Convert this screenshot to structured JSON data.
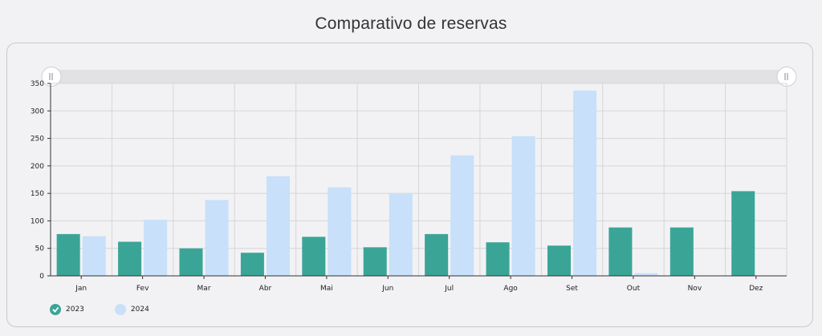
{
  "page": {
    "title": "Comparativo de reservas"
  },
  "colors": {
    "series_2023": "#3aa597",
    "series_2024": "#c8e0f9"
  },
  "chart_data": {
    "type": "bar",
    "title": "Comparativo de reservas",
    "categories": [
      "Jan",
      "Fev",
      "Mar",
      "Abr",
      "Mai",
      "Jun",
      "Jul",
      "Ago",
      "Set",
      "Out",
      "Nov",
      "Dez"
    ],
    "series": [
      {
        "name": "2023",
        "values": [
          76,
          62,
          50,
          42,
          71,
          52,
          76,
          61,
          55,
          88,
          88,
          154
        ]
      },
      {
        "name": "2024",
        "values": [
          72,
          102,
          138,
          181,
          161,
          150,
          219,
          254,
          337,
          5,
          0,
          0
        ]
      }
    ],
    "ylim": [
      0,
      350
    ],
    "yticks": [
      0,
      50,
      100,
      150,
      200,
      250,
      300,
      350
    ],
    "grid": true,
    "legend_position": "bottom-left",
    "range_selector": true
  },
  "legend": [
    {
      "label": "2023",
      "icon": "checkmark-icon"
    },
    {
      "label": "2024",
      "icon": "checkmark-icon"
    }
  ]
}
